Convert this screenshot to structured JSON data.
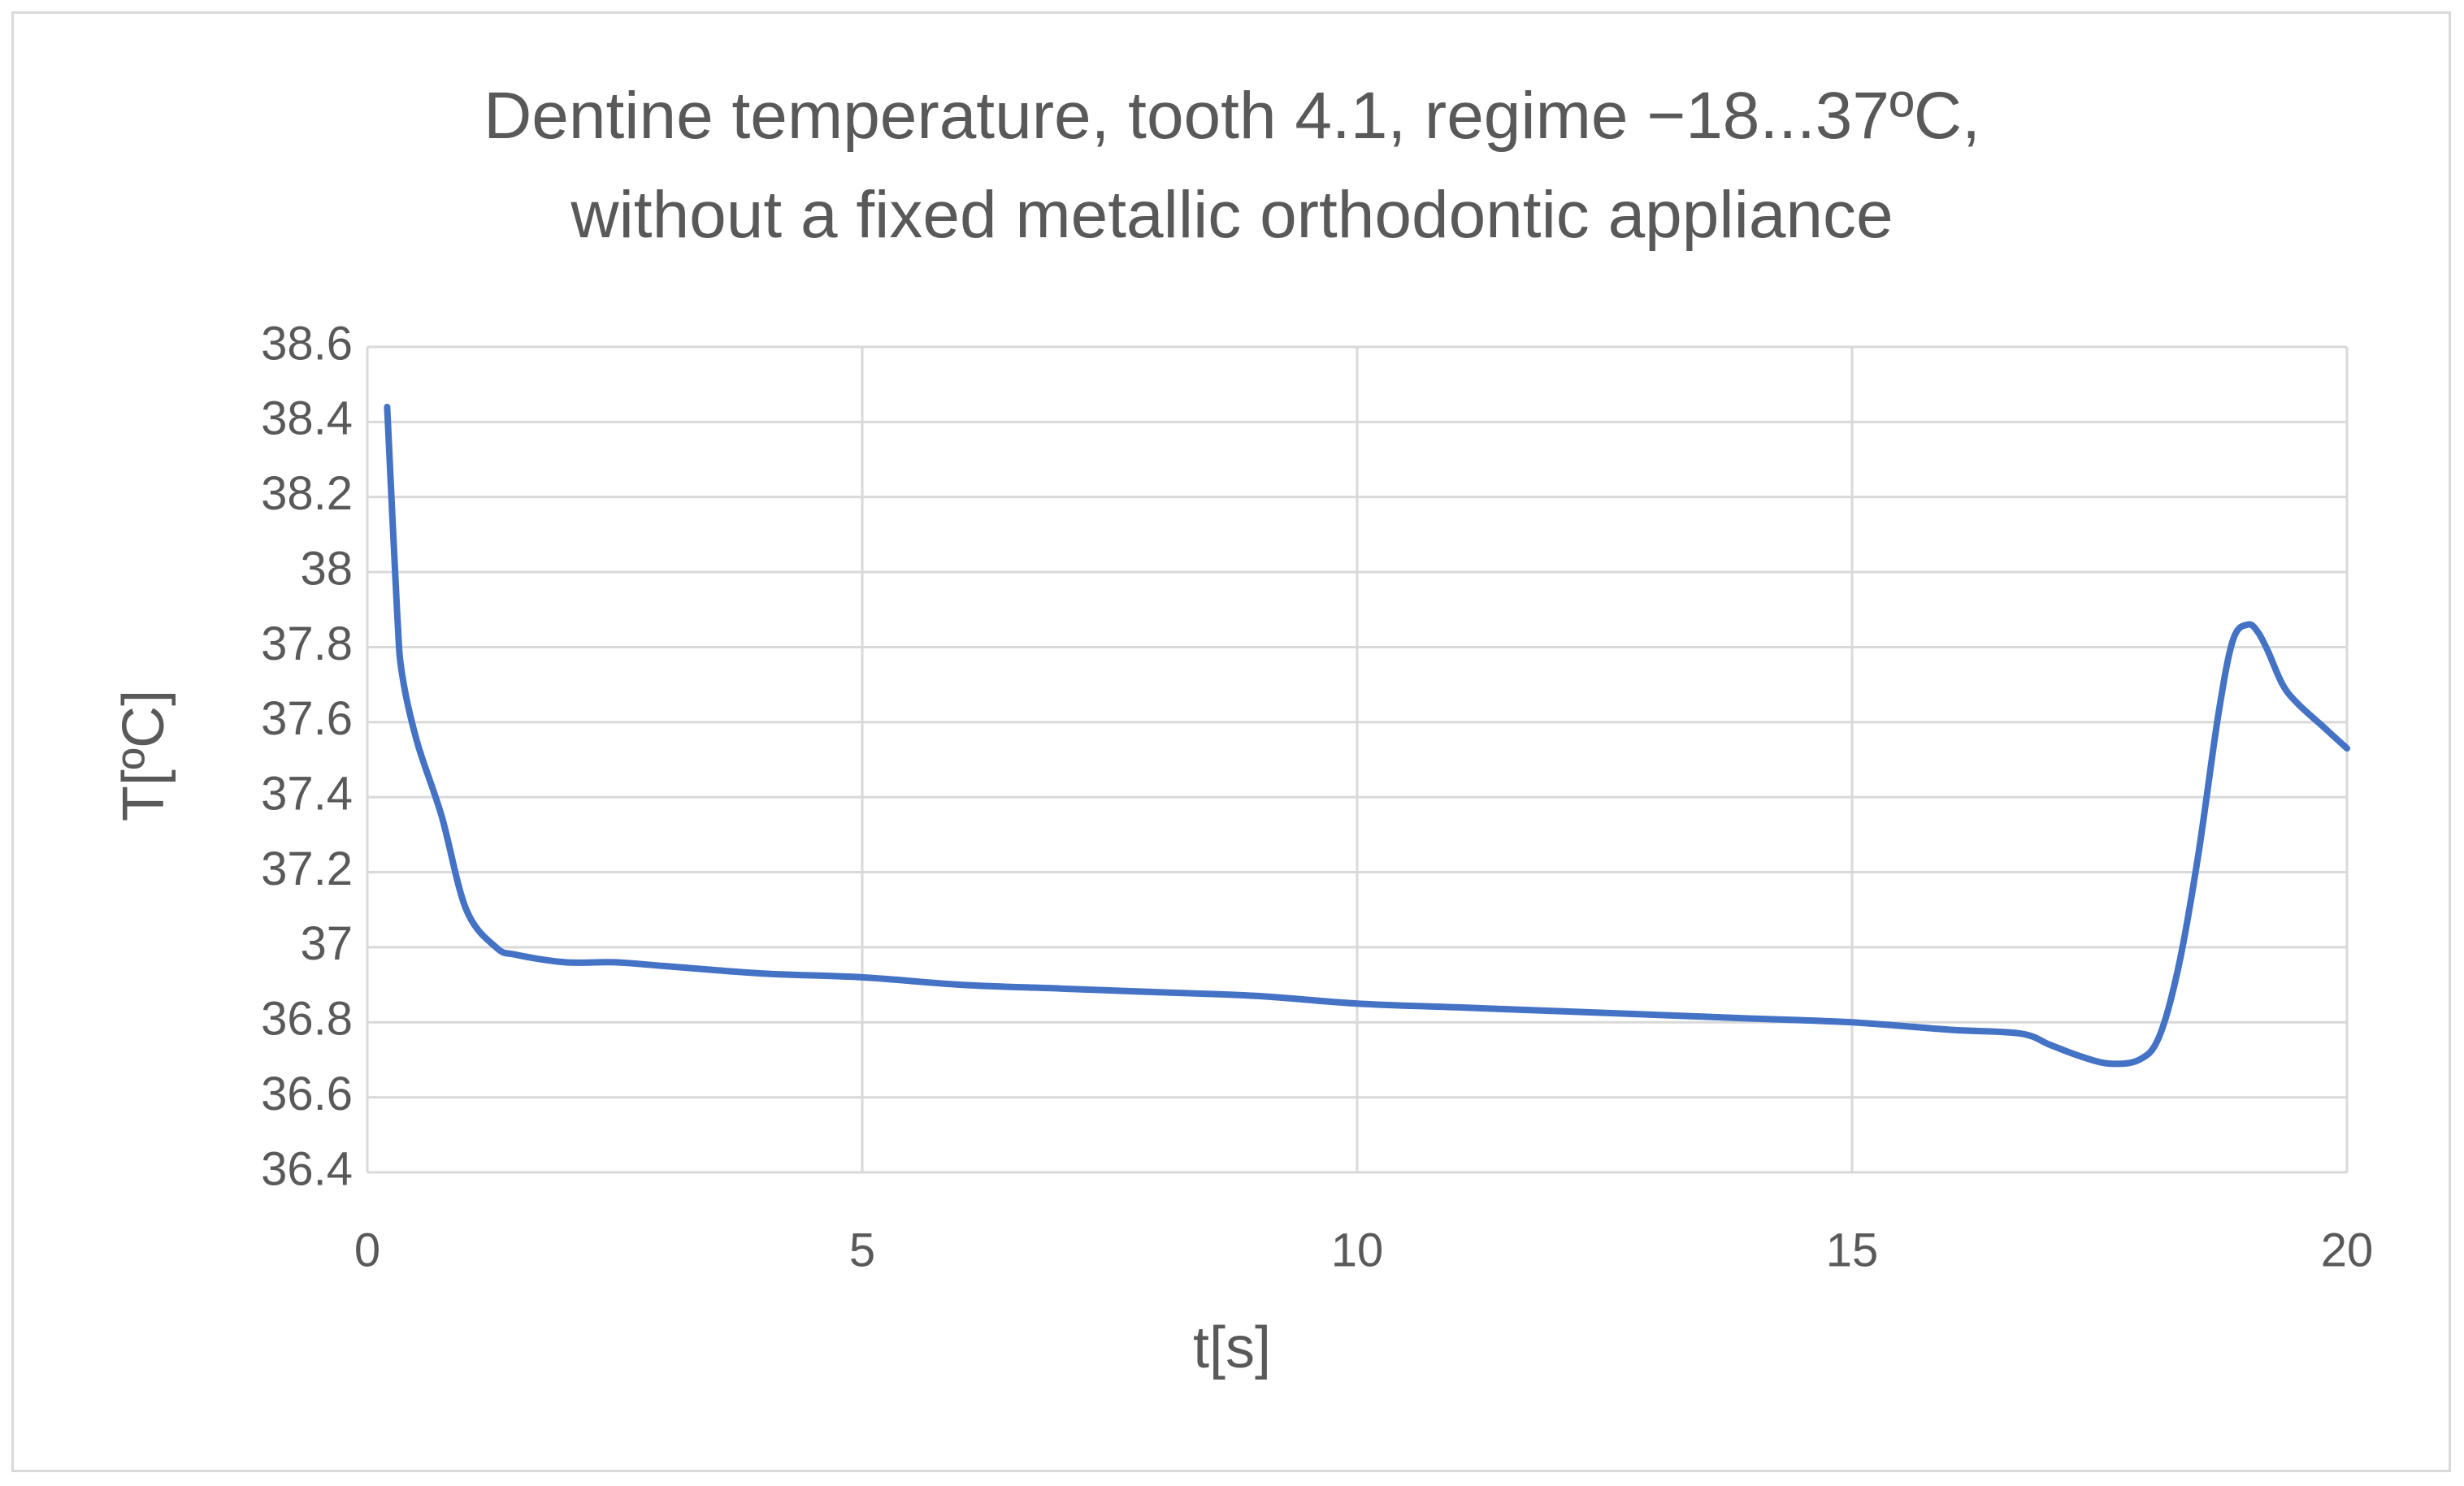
{
  "chart_data": {
    "type": "line",
    "title": "Dentine temperature, tooth 4.1, regime −18...37ºC,",
    "subtitle": "without a fixed metallic orthodontic appliance",
    "xlabel": "t[s]",
    "ylabel": "T[ºC]",
    "xlim": [
      0,
      20
    ],
    "ylim": [
      36.4,
      38.6
    ],
    "x_ticks": [
      "0",
      "5",
      "10",
      "15",
      "20"
    ],
    "y_ticks": [
      "36.4",
      "36.6",
      "36.8",
      "37",
      "37.2",
      "37.4",
      "37.6",
      "37.8",
      "38",
      "38.2",
      "38.4",
      "38.6"
    ],
    "grid": true,
    "legend": "none",
    "series": [
      {
        "color": "#4472c4",
        "x": [
          0.2,
          0.3,
          0.35,
          0.5,
          0.75,
          1.0,
          1.3,
          1.5,
          2.0,
          2.5,
          3,
          4,
          5,
          6,
          7,
          8,
          9,
          10,
          11,
          12,
          13,
          14,
          15,
          16,
          16.7,
          17.0,
          17.3,
          17.6,
          17.9,
          18.1,
          18.3,
          18.5,
          18.7,
          18.85,
          19.0,
          19.1,
          19.2,
          19.35,
          19.5,
          19.75,
          20.0
        ],
        "y": [
          38.44,
          37.9,
          37.73,
          37.55,
          37.35,
          37.1,
          37.0,
          36.98,
          36.96,
          36.96,
          36.95,
          36.93,
          36.92,
          36.9,
          36.89,
          36.88,
          36.87,
          36.85,
          36.84,
          36.83,
          36.82,
          36.81,
          36.8,
          36.78,
          36.77,
          36.74,
          36.71,
          36.69,
          36.7,
          36.76,
          36.95,
          37.25,
          37.62,
          37.82,
          37.86,
          37.84,
          37.79,
          37.7,
          37.65,
          37.59,
          37.53
        ]
      }
    ]
  }
}
